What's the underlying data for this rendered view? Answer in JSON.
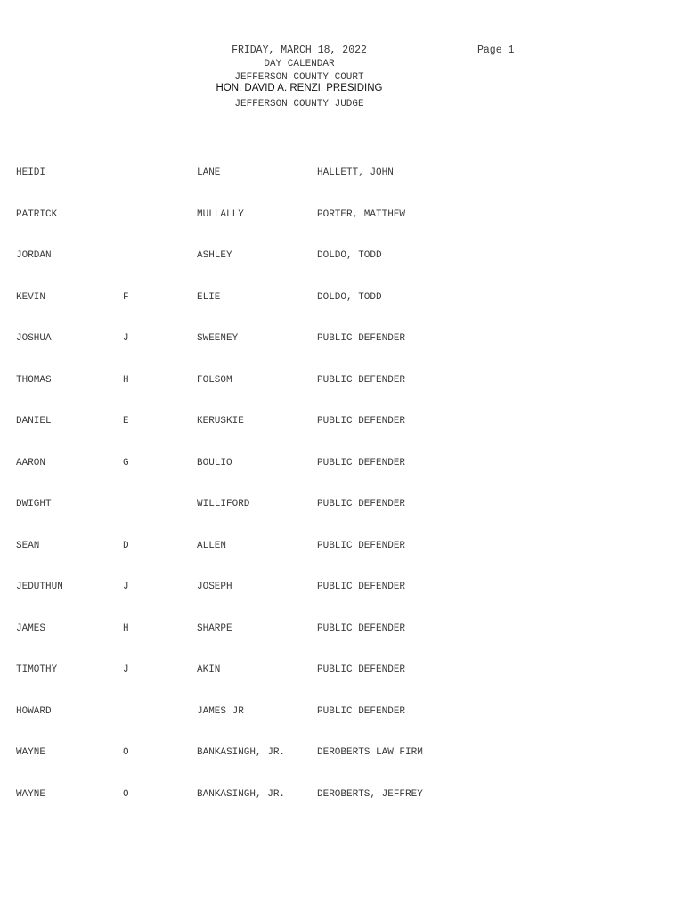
{
  "header": {
    "date": "FRIDAY, MARCH 18, 2022",
    "page": "Page 1",
    "calendar": "DAY CALENDAR",
    "court": "JEFFERSON COUNTY COURT",
    "presiding": "HON. DAVID A. RENZI, PRESIDING",
    "judge": "JEFFERSON COUNTY JUDGE"
  },
  "rows": [
    {
      "first": "HEIDI",
      "mi": "",
      "last": "LANE",
      "attorney": "HALLETT, JOHN"
    },
    {
      "first": "PATRICK",
      "mi": "",
      "last": "MULLALLY",
      "attorney": "PORTER, MATTHEW"
    },
    {
      "first": "JORDAN",
      "mi": "",
      "last": "ASHLEY",
      "attorney": "DOLDO, TODD"
    },
    {
      "first": "KEVIN",
      "mi": "F",
      "last": "ELIE",
      "attorney": "DOLDO, TODD"
    },
    {
      "first": "JOSHUA",
      "mi": "J",
      "last": "SWEENEY",
      "attorney": "PUBLIC DEFENDER"
    },
    {
      "first": "THOMAS",
      "mi": "H",
      "last": "FOLSOM",
      "attorney": "PUBLIC DEFENDER"
    },
    {
      "first": "DANIEL",
      "mi": "E",
      "last": "KERUSKIE",
      "attorney": "PUBLIC DEFENDER"
    },
    {
      "first": "AARON",
      "mi": "G",
      "last": "BOULIO",
      "attorney": "PUBLIC DEFENDER"
    },
    {
      "first": "DWIGHT",
      "mi": "",
      "last": "WILLIFORD",
      "attorney": "PUBLIC DEFENDER"
    },
    {
      "first": "SEAN",
      "mi": "D",
      "last": "ALLEN",
      "attorney": "PUBLIC DEFENDER"
    },
    {
      "first": "JEDUTHUN",
      "mi": "J",
      "last": "JOSEPH",
      "attorney": "PUBLIC DEFENDER"
    },
    {
      "first": "JAMES",
      "mi": "H",
      "last": "SHARPE",
      "attorney": "PUBLIC DEFENDER"
    },
    {
      "first": "TIMOTHY",
      "mi": "J",
      "last": "AKIN",
      "attorney": "PUBLIC DEFENDER"
    },
    {
      "first": "HOWARD",
      "mi": "",
      "last": "JAMES JR",
      "attorney": "PUBLIC DEFENDER"
    },
    {
      "first": "WAYNE",
      "mi": "O",
      "last": "BANKASINGH, JR.",
      "attorney": "DEROBERTS LAW FIRM"
    },
    {
      "first": "WAYNE",
      "mi": "O",
      "last": "BANKASINGH, JR.",
      "attorney": "DEROBERTS, JEFFREY"
    }
  ]
}
